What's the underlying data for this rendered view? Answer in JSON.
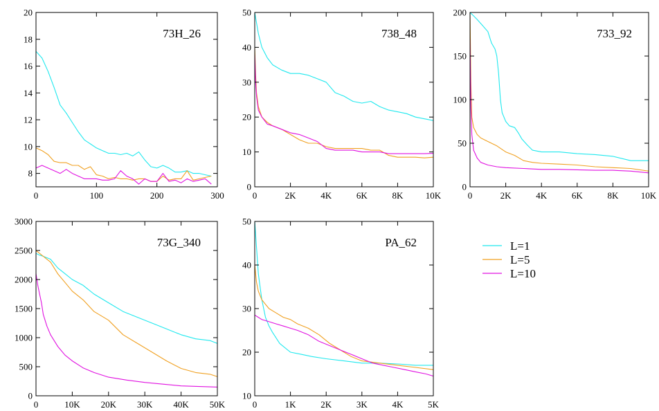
{
  "colors": {
    "L1": "#1ee8ee",
    "L5": "#f0a020",
    "L10": "#e010e0"
  },
  "legend": [
    {
      "name": "L=1",
      "color_key": "L1"
    },
    {
      "name": "L=5",
      "color_key": "L5"
    },
    {
      "name": "L=10",
      "color_key": "L10"
    }
  ],
  "chart_data": [
    {
      "type": "line",
      "title": "73H_26",
      "xlim": [
        0,
        300
      ],
      "ylim": [
        7,
        20
      ],
      "xticks": [
        0,
        100,
        200,
        300
      ],
      "xticklabels": [
        "0",
        "100",
        "200",
        "300"
      ],
      "yticks": [
        8,
        10,
        12,
        14,
        16,
        18,
        20
      ],
      "yticklabels": [
        "8",
        "10",
        "12",
        "14",
        "16",
        "18",
        "20"
      ],
      "series": [
        {
          "name": "L=1",
          "x": [
            0,
            10,
            20,
            30,
            40,
            50,
            60,
            70,
            80,
            90,
            100,
            110,
            120,
            130,
            140,
            150,
            160,
            170,
            180,
            190,
            200,
            210,
            220,
            230,
            240,
            250,
            260,
            270,
            280,
            290
          ],
          "y": [
            17.1,
            16.6,
            15.6,
            14.4,
            13.1,
            12.5,
            11.8,
            11.1,
            10.5,
            10.2,
            9.9,
            9.7,
            9.5,
            9.5,
            9.4,
            9.5,
            9.3,
            9.6,
            9.0,
            8.5,
            8.4,
            8.6,
            8.4,
            8.1,
            8.1,
            8.2,
            8.0,
            8.0,
            7.9,
            7.8
          ]
        },
        {
          "name": "L=5",
          "x": [
            0,
            10,
            20,
            30,
            40,
            50,
            60,
            70,
            80,
            90,
            100,
            110,
            120,
            130,
            140,
            150,
            160,
            170,
            180,
            190,
            200,
            210,
            220,
            230,
            240,
            250,
            260,
            270,
            280,
            290
          ],
          "y": [
            9.9,
            9.7,
            9.4,
            8.9,
            8.8,
            8.8,
            8.6,
            8.6,
            8.3,
            8.5,
            7.9,
            7.8,
            7.6,
            7.7,
            7.6,
            7.6,
            7.5,
            7.6,
            7.6,
            7.4,
            7.4,
            7.8,
            7.5,
            7.6,
            7.6,
            8.2,
            7.5,
            7.6,
            7.7,
            7.8
          ]
        },
        {
          "name": "L=10",
          "x": [
            0,
            10,
            20,
            30,
            40,
            50,
            60,
            70,
            80,
            90,
            100,
            110,
            120,
            130,
            140,
            150,
            160,
            170,
            180,
            190,
            200,
            210,
            220,
            230,
            240,
            250,
            260,
            270,
            280,
            290
          ],
          "y": [
            8.4,
            8.6,
            8.4,
            8.2,
            8.0,
            8.3,
            8.0,
            7.8,
            7.6,
            7.6,
            7.6,
            7.5,
            7.5,
            7.6,
            8.2,
            7.8,
            7.6,
            7.2,
            7.6,
            7.4,
            7.4,
            8.0,
            7.4,
            7.5,
            7.3,
            7.6,
            7.4,
            7.5,
            7.6,
            7.2
          ]
        }
      ]
    },
    {
      "type": "line",
      "title": "738_48",
      "xlim": [
        0,
        10000
      ],
      "ylim": [
        0,
        50
      ],
      "xticks": [
        0,
        2000,
        4000,
        6000,
        8000,
        10000
      ],
      "xticklabels": [
        "0",
        "2K",
        "4K",
        "6K",
        "8K",
        "10K"
      ],
      "yticks": [
        0,
        10,
        20,
        30,
        40,
        50
      ],
      "yticklabels": [
        "0",
        "10",
        "20",
        "30",
        "40",
        "50"
      ],
      "series": [
        {
          "name": "L=1",
          "x": [
            0,
            100,
            200,
            400,
            700,
            1000,
            1500,
            2000,
            2500,
            3000,
            3500,
            4000,
            4500,
            5000,
            5500,
            6000,
            6500,
            7000,
            7500,
            8000,
            8500,
            9000,
            9500,
            10000
          ],
          "y": [
            50,
            47,
            44,
            40,
            37,
            35,
            33.5,
            32.5,
            32.5,
            32,
            31,
            30,
            27,
            26,
            24.5,
            24,
            24.5,
            23,
            22,
            21.5,
            21,
            20,
            19.5,
            19
          ]
        },
        {
          "name": "L=5",
          "x": [
            0,
            50,
            100,
            200,
            400,
            700,
            1000,
            1500,
            2000,
            2500,
            3000,
            3500,
            4000,
            4500,
            5000,
            5500,
            6000,
            6500,
            7000,
            7500,
            8000,
            8500,
            9000,
            9500,
            10000
          ],
          "y": [
            40,
            32,
            27,
            23,
            20,
            18.5,
            17.5,
            16.5,
            15,
            13.5,
            12.5,
            12.5,
            11.5,
            11,
            11,
            11,
            11,
            10.5,
            10.5,
            9,
            8.5,
            8.5,
            8.5,
            8.3,
            8.5
          ]
        },
        {
          "name": "L=10",
          "x": [
            0,
            50,
            100,
            200,
            400,
            700,
            1000,
            1500,
            2000,
            2500,
            3000,
            3500,
            4000,
            4500,
            5000,
            5500,
            6000,
            6500,
            7000,
            7500,
            8000,
            8500,
            9000,
            9500,
            10000
          ],
          "y": [
            38,
            30,
            26,
            22,
            20,
            18,
            17.5,
            16.5,
            15.5,
            15,
            14,
            13,
            11,
            10.5,
            10.5,
            10.5,
            10,
            10,
            10,
            9.5,
            9.5,
            9.5,
            9.5,
            9.5,
            9.6
          ]
        }
      ]
    },
    {
      "type": "line",
      "title": "733_92",
      "xlim": [
        0,
        10000
      ],
      "ylim": [
        0,
        200
      ],
      "xticks": [
        0,
        2000,
        4000,
        6000,
        8000,
        10000
      ],
      "xticklabels": [
        "0",
        "2K",
        "4K",
        "6K",
        "8K",
        "10K"
      ],
      "yticks": [
        0,
        50,
        100,
        150,
        200
      ],
      "yticklabels": [
        "0",
        "50",
        "100",
        "150",
        "200"
      ],
      "series": [
        {
          "name": "L=1",
          "x": [
            0,
            100,
            200,
            400,
            700,
            1000,
            1200,
            1400,
            1500,
            1600,
            1700,
            1800,
            2000,
            2200,
            2500,
            2700,
            2900,
            3200,
            3500,
            4000,
            5000,
            6000,
            7000,
            8000,
            9000,
            10000
          ],
          "y": [
            200,
            198,
            196,
            192,
            185,
            178,
            165,
            158,
            150,
            130,
            100,
            85,
            75,
            70,
            68,
            62,
            55,
            48,
            42,
            40,
            40,
            38,
            37,
            35,
            30,
            30
          ]
        },
        {
          "name": "L=5",
          "x": [
            0,
            50,
            100,
            200,
            400,
            600,
            1000,
            1500,
            2000,
            2500,
            3000,
            3500,
            4000,
            5000,
            6000,
            7000,
            8000,
            9000,
            10000
          ],
          "y": [
            200,
            120,
            80,
            68,
            60,
            56,
            52,
            47,
            40,
            36,
            30,
            28,
            27,
            26,
            25,
            23,
            22,
            21,
            18
          ]
        },
        {
          "name": "L=10",
          "x": [
            0,
            50,
            100,
            200,
            400,
            600,
            1000,
            1500,
            2000,
            3000,
            4000,
            5000,
            6000,
            7000,
            8000,
            9000,
            10000
          ],
          "y": [
            170,
            90,
            60,
            42,
            33,
            28,
            25,
            23,
            22,
            21,
            20,
            20,
            19.5,
            19,
            19,
            18,
            16
          ]
        }
      ]
    },
    {
      "type": "line",
      "title": "73G_340",
      "xlim": [
        0,
        50000
      ],
      "ylim": [
        0,
        3000
      ],
      "xticks": [
        0,
        10000,
        20000,
        30000,
        40000,
        50000
      ],
      "xticklabels": [
        "0",
        "10K",
        "20K",
        "30K",
        "40K",
        "50K"
      ],
      "yticks": [
        0,
        500,
        1000,
        1500,
        2000,
        2500,
        3000
      ],
      "yticklabels": [
        "0",
        "500",
        "1000",
        "1500",
        "2000",
        "2500",
        "3000"
      ],
      "series": [
        {
          "name": "L=1",
          "x": [
            0,
            1000,
            2000,
            4000,
            6000,
            8000,
            10000,
            13000,
            16000,
            20000,
            24000,
            28000,
            32000,
            36000,
            40000,
            44000,
            48000,
            50000
          ],
          "y": [
            2450,
            2420,
            2400,
            2350,
            2200,
            2100,
            2000,
            1900,
            1750,
            1600,
            1450,
            1350,
            1250,
            1150,
            1050,
            980,
            950,
            900
          ]
        },
        {
          "name": "L=5",
          "x": [
            0,
            1000,
            2000,
            4000,
            6000,
            8000,
            10000,
            13000,
            16000,
            20000,
            24000,
            28000,
            32000,
            36000,
            40000,
            44000,
            48000,
            50000
          ],
          "y": [
            2500,
            2450,
            2400,
            2300,
            2100,
            1950,
            1800,
            1650,
            1450,
            1300,
            1050,
            900,
            750,
            600,
            470,
            400,
            370,
            330
          ]
        },
        {
          "name": "L=10",
          "x": [
            0,
            500,
            1000,
            1500,
            2000,
            3000,
            4000,
            6000,
            8000,
            10000,
            13000,
            16000,
            20000,
            25000,
            30000,
            35000,
            40000,
            45000,
            50000
          ],
          "y": [
            2100,
            1900,
            1750,
            1600,
            1400,
            1200,
            1050,
            850,
            700,
            600,
            480,
            400,
            320,
            270,
            230,
            200,
            170,
            160,
            150
          ]
        }
      ]
    },
    {
      "type": "line",
      "title": "PA_62",
      "xlim": [
        0,
        5000
      ],
      "ylim": [
        10,
        50
      ],
      "xticks": [
        0,
        1000,
        2000,
        3000,
        4000,
        5000
      ],
      "xticklabels": [
        "0",
        "1K",
        "2K",
        "3K",
        "4K",
        "5K"
      ],
      "yticks": [
        10,
        20,
        30,
        40,
        50
      ],
      "yticklabels": [
        "10",
        "20",
        "30",
        "40",
        "50"
      ],
      "series": [
        {
          "name": "L=1",
          "x": [
            0,
            50,
            100,
            150,
            200,
            300,
            400,
            500,
            700,
            1000,
            1300,
            1600,
            2000,
            2500,
            3000,
            3500,
            4000,
            4500,
            5000
          ],
          "y": [
            50,
            44,
            38,
            35,
            32,
            28,
            26,
            24.5,
            22,
            20,
            19.5,
            19,
            18.5,
            18,
            17.5,
            17.5,
            17.3,
            17,
            17
          ]
        },
        {
          "name": "L=5",
          "x": [
            0,
            50,
            100,
            200,
            400,
            600,
            800,
            1000,
            1200,
            1500,
            1800,
            2100,
            2400,
            2700,
            3000,
            3500,
            4000,
            4500,
            5000
          ],
          "y": [
            40,
            36,
            34,
            32,
            30,
            29,
            28,
            27.5,
            26.5,
            25.5,
            24,
            22,
            20.5,
            19,
            18,
            17.5,
            17,
            16.5,
            16
          ]
        },
        {
          "name": "L=10",
          "x": [
            0,
            100,
            200,
            400,
            600,
            800,
            1000,
            1200,
            1500,
            1800,
            2100,
            2400,
            2700,
            3000,
            3300,
            3600,
            3900,
            4200,
            4500,
            4800,
            5000
          ],
          "y": [
            28.5,
            28,
            27.5,
            27,
            26.5,
            26,
            25.5,
            25,
            24,
            22.5,
            21.5,
            20.5,
            19.5,
            18.5,
            17.5,
            17,
            16.5,
            16,
            15.5,
            15,
            14.5
          ]
        }
      ]
    }
  ]
}
